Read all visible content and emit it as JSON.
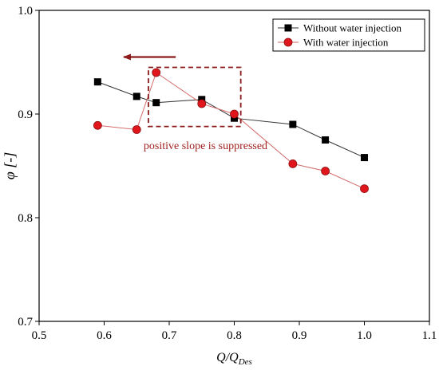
{
  "chart_data": {
    "type": "line",
    "title": "",
    "xlabel": "Q/Q",
    "xlabel_sub": "Des",
    "ylabel": "φ [-]",
    "xlim": [
      0.5,
      1.1
    ],
    "ylim": [
      0.7,
      1.0
    ],
    "xticks": [
      "0.5",
      "0.6",
      "0.7",
      "0.8",
      "0.9",
      "1.0",
      "1.1"
    ],
    "yticks": [
      "0.7",
      "0.8",
      "0.9",
      "1.0"
    ],
    "grid": false,
    "legend_position": "top-right",
    "series": [
      {
        "name": "Without water injection",
        "color": "#000000",
        "marker": "square",
        "x": [
          0.59,
          0.65,
          0.68,
          0.75,
          0.8,
          0.89,
          0.94,
          1.0
        ],
        "y": [
          0.931,
          0.917,
          0.911,
          0.914,
          0.896,
          0.89,
          0.875,
          0.858
        ]
      },
      {
        "name": "With water injection",
        "color": "#e0161c",
        "marker": "circle",
        "x": [
          0.59,
          0.65,
          0.68,
          0.75,
          0.8,
          0.89,
          0.94,
          1.0
        ],
        "y": [
          0.889,
          0.885,
          0.94,
          0.91,
          0.9,
          0.852,
          0.845,
          0.828
        ]
      }
    ],
    "annotations": [
      {
        "text": "positive slope is suppressed",
        "color": "#a32121"
      }
    ],
    "highlight_box": {
      "x": [
        0.668,
        0.81
      ],
      "y": [
        0.888,
        0.945
      ],
      "color": "#8b1a1a"
    },
    "arrow": {
      "from": [
        0.71,
        0.955
      ],
      "to": [
        0.63,
        0.955
      ],
      "color": "#8b1a1a"
    }
  }
}
